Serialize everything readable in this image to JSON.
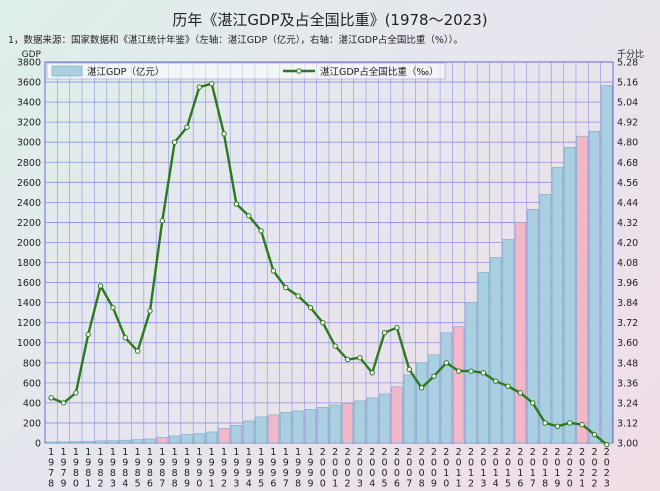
{
  "chart_data": {
    "type": "bar+line",
    "title": "历年《湛江GDP及占全国比重》(1978～2023)",
    "note": "1，数据来源：国家数据和《湛江统计年鉴》（左轴：湛江GDP（亿元），右轴：湛江GDP占全国比重（%））。",
    "left_axis": {
      "label": "GDP",
      "ylim": [
        0,
        3800
      ],
      "step": 200
    },
    "right_axis": {
      "label": "千分比",
      "ylim": [
        3.0,
        5.28
      ],
      "step": 0.12
    },
    "grid": true,
    "colors": {
      "bar": "#a9cfe1",
      "bar_highlight": "#f2b8c8",
      "bar_edge": "#7aaac8",
      "line": "#2b7a1e",
      "marker": "#ffffff"
    },
    "highlight_years": [
      "1987",
      "1992",
      "1996",
      "2002",
      "2006",
      "2011",
      "2016",
      "2021"
    ],
    "categories": [
      "1978",
      "1979",
      "1980",
      "1981",
      "1982",
      "1983",
      "1984",
      "1985",
      "1986",
      "1987",
      "1988",
      "1989",
      "1990",
      "1991",
      "1992",
      "1993",
      "1994",
      "1995",
      "1996",
      "1997",
      "1998",
      "1999",
      "2000",
      "2001",
      "2002",
      "2003",
      "2004",
      "2005",
      "2006",
      "2007",
      "2008",
      "2009",
      "2010",
      "2011",
      "2012",
      "2013",
      "2014",
      "2015",
      "2016",
      "2017",
      "2018",
      "2019",
      "2020",
      "2021",
      "2022",
      "2023"
    ],
    "series": [
      {
        "name": "湛江GDP（亿元）",
        "axis": "left",
        "type": "bar",
        "values": [
          10,
          12,
          14,
          17,
          21,
          23,
          28,
          34,
          40,
          55,
          70,
          85,
          95,
          110,
          145,
          175,
          220,
          260,
          280,
          305,
          320,
          335,
          355,
          380,
          395,
          420,
          450,
          490,
          560,
          680,
          800,
          880,
          1100,
          1160,
          1400,
          1700,
          1850,
          2030,
          2200,
          2330,
          2480,
          2750,
          2950,
          3060,
          3110,
          3565
        ]
      },
      {
        "name": "湛江GDP占全国比重（‰）",
        "axis": "right",
        "type": "line",
        "values": [
          3.27,
          3.24,
          3.3,
          3.65,
          3.94,
          3.81,
          3.63,
          3.55,
          3.79,
          4.33,
          4.8,
          4.89,
          5.13,
          5.15,
          4.85,
          4.43,
          4.36,
          4.27,
          4.03,
          3.93,
          3.88,
          3.81,
          3.72,
          3.58,
          3.5,
          3.51,
          3.42,
          3.66,
          3.69,
          3.44,
          3.33,
          3.4,
          3.48,
          3.43,
          3.43,
          3.42,
          3.37,
          3.34,
          3.3,
          3.24,
          3.12,
          3.1,
          3.12,
          3.11,
          3.05,
          2.99
        ]
      }
    ]
  }
}
